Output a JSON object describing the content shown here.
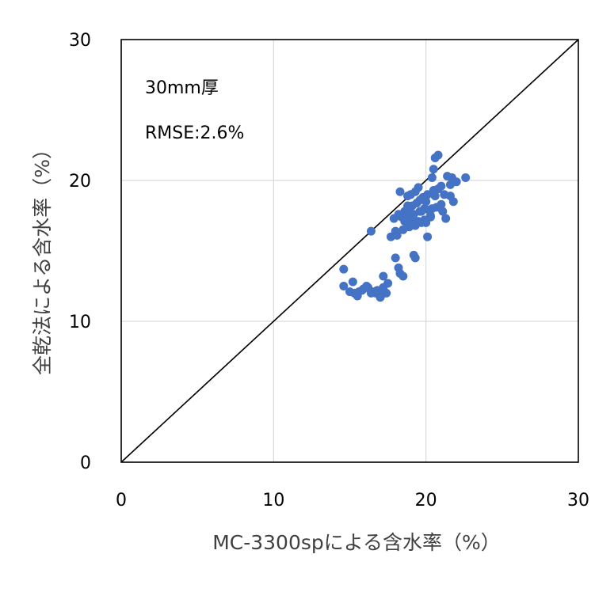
{
  "chart_data": {
    "type": "scatter",
    "xlabel": "MC-3300spによる含水率（%）",
    "ylabel": "全乾法による含水率（%）",
    "annotations": [
      "30mm厚",
      "RMSE:2.6%"
    ],
    "xlim": [
      0,
      30
    ],
    "ylim": [
      0,
      30
    ],
    "xticks": [
      "0",
      "10",
      "20",
      "30"
    ],
    "yticks": [
      "0",
      "10",
      "20",
      "30"
    ],
    "grid": true,
    "reference_line": {
      "from": [
        0,
        0
      ],
      "to": [
        30,
        30
      ],
      "label": ""
    },
    "series": [
      {
        "color": "#4472c4",
        "x": [
          20.8,
          20.6,
          20.5,
          20.4,
          21.7,
          21.4,
          22.6,
          22.0,
          21.0,
          20.8,
          20.5,
          21.2,
          20.6,
          19.5,
          19.3,
          19.0,
          18.8,
          19.8,
          19.6,
          20.0,
          19.4,
          19.1,
          18.9,
          18.6,
          18.2,
          18.4,
          18.7,
          19.0,
          19.2,
          19.6,
          20.2,
          20.4,
          20.7,
          21.1,
          21.3,
          21.8,
          21.6,
          21.0,
          20.3,
          19.9,
          19.7,
          19.3,
          18.9,
          18.5,
          18.0,
          17.9,
          17.7,
          18.3,
          18.1,
          18.6,
          19.0,
          19.5,
          20.0,
          20.3,
          16.4,
          18.0,
          18.2,
          18.3,
          18.5,
          19.2,
          19.3,
          20.1,
          21.6,
          14.6,
          14.6,
          15.0,
          15.3,
          15.6,
          15.9,
          16.2,
          16.5,
          16.8,
          17.1,
          17.4,
          17.0,
          16.7,
          17.2,
          15.2,
          15.5,
          15.8,
          16.1,
          16.4,
          17.5,
          17.2,
          19.7,
          20.1,
          18.8,
          19.9
        ],
        "y": [
          21.8,
          21.6,
          20.8,
          20.2,
          20.2,
          20.3,
          20.2,
          19.9,
          19.6,
          19.4,
          19.3,
          19.0,
          18.9,
          19.5,
          19.2,
          19.0,
          18.9,
          18.8,
          18.6,
          18.5,
          18.4,
          18.2,
          18.0,
          17.8,
          17.6,
          17.4,
          17.5,
          17.3,
          17.6,
          17.8,
          17.9,
          18.0,
          18.1,
          17.8,
          17.3,
          18.5,
          19.7,
          18.3,
          17.4,
          17.2,
          17.0,
          16.8,
          16.7,
          16.5,
          16.4,
          17.3,
          16.0,
          19.2,
          16.1,
          17.1,
          16.9,
          17.1,
          17.0,
          17.5,
          16.4,
          14.5,
          13.8,
          13.4,
          13.2,
          14.7,
          14.5,
          16.0,
          18.9,
          13.7,
          12.5,
          12.1,
          12.0,
          12.1,
          12.3,
          12.4,
          12.1,
          12.2,
          11.9,
          12.0,
          11.7,
          12.0,
          13.2,
          12.8,
          11.8,
          12.2,
          12.5,
          12.0,
          12.7,
          12.4,
          17.8,
          19.0,
          18.2,
          18.0
        ]
      }
    ]
  }
}
